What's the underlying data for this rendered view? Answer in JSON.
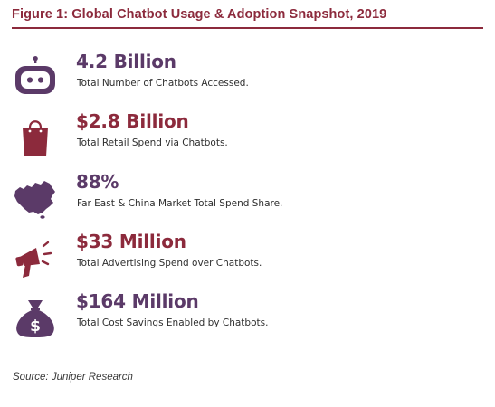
{
  "figure": {
    "title": "Figure 1: Global Chatbot Usage & Adoption Snapshot, 2019",
    "source": "Source: Juniper Research"
  },
  "colors": {
    "purple": "#5b3a68",
    "maroon": "#8c2a3c"
  },
  "stats": [
    {
      "icon": "chatbot-robot-icon",
      "value": "4.2 Billion",
      "description": "Total Number of Chatbots Accessed.",
      "color": "#5b3a68"
    },
    {
      "icon": "shopping-bag-icon",
      "value": "$2.8 Billion",
      "description": "Total Retail Spend via Chatbots.",
      "color": "#8c2a3c"
    },
    {
      "icon": "china-map-icon",
      "value": "88%",
      "description": "Far East & China Market Total Spend Share.",
      "color": "#5b3a68"
    },
    {
      "icon": "megaphone-icon",
      "value": "$33 Million",
      "description": "Total Advertising Spend over Chatbots.",
      "color": "#8c2a3c"
    },
    {
      "icon": "money-bag-icon",
      "value": "$164 Million",
      "description": "Total Cost Savings Enabled by Chatbots.",
      "color": "#5b3a68"
    }
  ]
}
